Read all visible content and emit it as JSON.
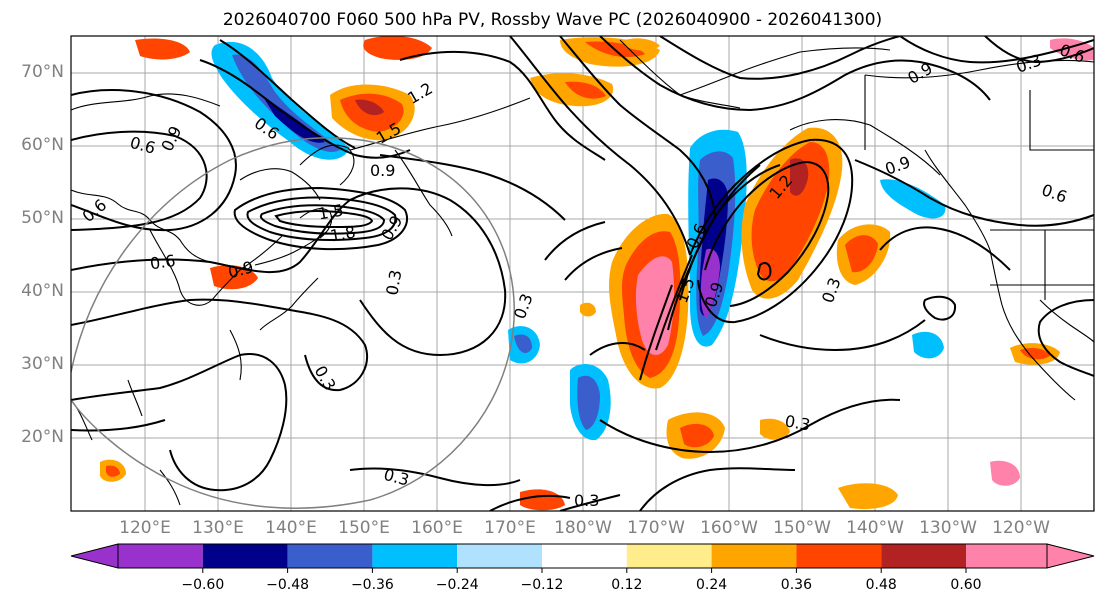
{
  "title": "2026040700 F060 500 hPa PV, Rossby Wave PC (2026040900 - 2026041300)",
  "lat_labels": [
    "70°N",
    "60°N",
    "50°N",
    "40°N",
    "30°N",
    "20°N"
  ],
  "lon_labels": [
    "120°E",
    "130°E",
    "140°E",
    "150°E",
    "160°E",
    "170°E",
    "180°W",
    "170°W",
    "160°W",
    "150°W",
    "140°W",
    "130°W",
    "120°W"
  ],
  "contour_labels": [
    "1.2",
    "1.5",
    "0.6",
    "0.9",
    "0.6",
    "0.9",
    "0.6",
    "1.5",
    "1.8",
    "0.9",
    "0.6",
    "0.9",
    "0.3",
    "0.3",
    "0.3",
    "1.5",
    "0.6",
    "0.9",
    "1.2",
    "0.9",
    "0.3",
    "0.3",
    "0.6",
    "0.9",
    "0.6",
    "0.3",
    "0.3",
    "0.3"
  ],
  "colorbar": {
    "ticks": [
      "−0.60",
      "−0.48",
      "−0.36",
      "−0.24",
      "−0.12",
      "0.12",
      "0.24",
      "0.36",
      "0.48",
      "0.60"
    ],
    "colors": [
      "#9932cc",
      "#00008b",
      "#3a5fcd",
      "#00bfff",
      "#b0e2ff",
      "#ffffff",
      "#ffec8b",
      "#ffa500",
      "#ff4500",
      "#b22222",
      "#ff82ab"
    ]
  }
}
